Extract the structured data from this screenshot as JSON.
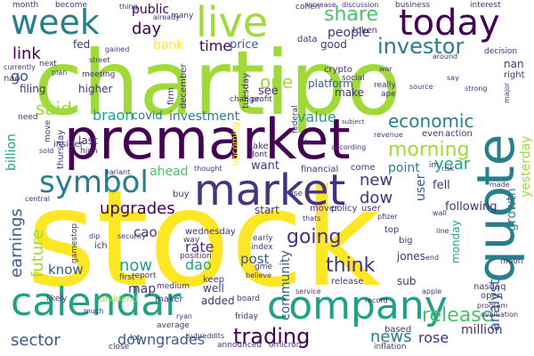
{
  "palette": {
    "yellow": "#fde725",
    "lime": "#a0da39",
    "green": "#4ac16d",
    "teal": "#1fa187",
    "cyan": "#277f8e",
    "blue": "#365c8d",
    "indigo": "#46327e",
    "purple": "#440154"
  },
  "words": [
    {
      "text": "stock",
      "color": "yellow",
      "orient": "h"
    },
    {
      "text": "chartipo",
      "color": "lime",
      "orient": "h"
    },
    {
      "text": "premarket",
      "color": "purple",
      "orient": "h"
    },
    {
      "text": "calendar",
      "color": "teal",
      "orient": "h"
    },
    {
      "text": "company",
      "color": "teal",
      "orient": "h"
    },
    {
      "text": "quote",
      "color": "cyan",
      "orient": "v"
    },
    {
      "text": "market",
      "color": "indigo",
      "orient": "h"
    },
    {
      "text": "live",
      "color": "lime",
      "orient": "h"
    },
    {
      "text": "today",
      "color": "purple",
      "orient": "h"
    },
    {
      "text": "week",
      "color": "cyan",
      "orient": "h"
    },
    {
      "text": "symbol",
      "color": "cyan",
      "orient": "h"
    },
    {
      "text": "share",
      "color": "green",
      "orient": "h"
    },
    {
      "text": "investor",
      "color": "cyan",
      "orient": "h"
    },
    {
      "text": "economic",
      "color": "cyan",
      "orient": "h"
    },
    {
      "text": "morning",
      "color": "lime",
      "orient": "h"
    },
    {
      "text": "trading",
      "color": "purple",
      "orient": "h"
    },
    {
      "text": "release",
      "color": "green",
      "orient": "h"
    },
    {
      "text": "news",
      "color": "cyan",
      "orient": "h"
    },
    {
      "text": "going",
      "color": "indigo",
      "orient": "h"
    },
    {
      "text": "think",
      "color": "indigo",
      "orient": "h"
    },
    {
      "text": "sector",
      "color": "blue",
      "orient": "h"
    },
    {
      "text": "downgrades",
      "color": "blue",
      "orient": "h"
    },
    {
      "text": "earnings",
      "color": "blue",
      "orient": "v"
    },
    {
      "text": "future",
      "color": "lime",
      "orient": "v"
    },
    {
      "text": "upgrades",
      "color": "purple",
      "orient": "h"
    },
    {
      "text": "said",
      "color": "lime",
      "orient": "h"
    },
    {
      "text": "link",
      "color": "purple",
      "orient": "h"
    },
    {
      "text": "day",
      "color": "purple",
      "orient": "h"
    },
    {
      "text": "time",
      "color": "purple",
      "orient": "h"
    },
    {
      "text": "price",
      "color": "blue",
      "orient": "h"
    },
    {
      "text": "public",
      "color": "purple",
      "orient": "h"
    },
    {
      "text": "bank",
      "color": "yellow",
      "orient": "h"
    },
    {
      "text": "people",
      "color": "indigo",
      "orient": "h"
    },
    {
      "text": "one",
      "color": "lime",
      "orient": "h"
    },
    {
      "text": "dow",
      "color": "indigo",
      "orient": "h"
    },
    {
      "text": "new",
      "color": "indigo",
      "orient": "h"
    },
    {
      "text": "year",
      "color": "teal",
      "orient": "h"
    },
    {
      "text": "point",
      "color": "cyan",
      "orient": "h"
    },
    {
      "text": "fell",
      "color": "indigo",
      "orient": "h"
    },
    {
      "text": "rose",
      "color": "indigo",
      "orient": "h"
    },
    {
      "text": "analyst",
      "color": "blue",
      "orient": "v"
    },
    {
      "text": "growth",
      "color": "cyan",
      "orient": "v"
    },
    {
      "text": "yesterday",
      "color": "lime",
      "orient": "v"
    },
    {
      "text": "following",
      "color": "indigo",
      "orient": "h"
    },
    {
      "text": "community",
      "color": "blue",
      "orient": "v"
    },
    {
      "text": "post",
      "color": "blue",
      "orient": "h"
    },
    {
      "text": "dao",
      "color": "teal",
      "orient": "h"
    },
    {
      "text": "rate",
      "color": "indigo",
      "orient": "h"
    },
    {
      "text": "cao",
      "color": "indigo",
      "orient": "h"
    },
    {
      "text": "now",
      "color": "teal",
      "orient": "h"
    },
    {
      "text": "know",
      "color": "blue",
      "orient": "h"
    },
    {
      "text": "map",
      "color": "indigo",
      "orient": "h"
    },
    {
      "text": "ahead",
      "color": "green",
      "orient": "h"
    },
    {
      "text": "braon",
      "color": "teal",
      "orient": "h"
    },
    {
      "text": "covid",
      "color": "cyan",
      "orient": "h"
    },
    {
      "text": "investment",
      "color": "cyan",
      "orient": "h"
    },
    {
      "text": "value",
      "color": "teal",
      "orient": "h"
    },
    {
      "text": "billion",
      "color": "teal",
      "orient": "v"
    },
    {
      "text": "monday",
      "color": "teal",
      "orient": "v"
    },
    {
      "text": "million",
      "color": "indigo",
      "orient": "h"
    },
    {
      "text": "nan",
      "color": "indigo",
      "orient": "h"
    },
    {
      "text": "nasdaq",
      "color": "indigo",
      "orient": "h"
    },
    {
      "text": "user",
      "color": "blue",
      "orient": "v"
    },
    {
      "text": "fed",
      "color": "indigo",
      "orient": "h"
    },
    {
      "text": "go",
      "color": "blue",
      "orient": "h"
    },
    {
      "text": "higher",
      "color": "indigo",
      "orient": "h"
    },
    {
      "text": "filing",
      "color": "indigo",
      "orient": "h"
    },
    {
      "text": "want",
      "color": "indigo",
      "orient": "h"
    },
    {
      "text": "see",
      "color": "indigo",
      "orient": "h"
    },
    {
      "text": "make",
      "color": "indigo",
      "orient": "h"
    },
    {
      "text": "good",
      "color": "indigo",
      "orient": "h"
    },
    {
      "text": "platform",
      "color": "blue",
      "orient": "h"
    },
    {
      "text": "jones",
      "color": "indigo",
      "orient": "h"
    },
    {
      "text": "sub",
      "color": "indigo",
      "orient": "h"
    },
    {
      "text": "keep",
      "color": "indigo",
      "orient": "h"
    },
    {
      "text": "well",
      "color": "indigo",
      "orient": "h"
    },
    {
      "text": "added",
      "color": "indigo",
      "orient": "h"
    },
    {
      "text": "start",
      "color": "indigo",
      "orient": "h"
    },
    {
      "text": "last",
      "color": "indigo",
      "orient": "h"
    },
    {
      "text": "mover",
      "color": "indigo",
      "orient": "h"
    },
    {
      "text": "policy",
      "color": "indigo",
      "orient": "h"
    },
    {
      "text": "user",
      "color": "indigo",
      "orient": "h"
    },
    {
      "text": "based",
      "color": "indigo",
      "orient": "h"
    },
    {
      "text": "business",
      "color": "indigo",
      "orient": "h"
    },
    {
      "text": "interest",
      "color": "indigo",
      "orient": "h"
    },
    {
      "text": "crypto",
      "color": "indigo",
      "orient": "h"
    },
    {
      "text": "token",
      "color": "indigo",
      "orient": "h"
    },
    {
      "text": "data",
      "color": "indigo",
      "orient": "h"
    },
    {
      "text": "cohen",
      "color": "indigo",
      "orient": "h"
    },
    {
      "text": "many",
      "color": "indigo",
      "orient": "h"
    },
    {
      "text": "release",
      "color": "indigo",
      "orient": "h"
    },
    {
      "text": "top",
      "color": "indigo",
      "orient": "h"
    },
    {
      "text": "big",
      "color": "indigo",
      "orient": "h"
    },
    {
      "text": "open",
      "color": "indigo",
      "orient": "h"
    },
    {
      "text": "even",
      "color": "indigo",
      "orient": "h"
    },
    {
      "text": "action",
      "color": "indigo",
      "orient": "h"
    },
    {
      "text": "come",
      "color": "indigo",
      "orient": "h"
    },
    {
      "text": "financial",
      "color": "indigo",
      "orient": "h"
    },
    {
      "text": "social",
      "color": "indigo",
      "orient": "h"
    },
    {
      "text": "firm",
      "color": "indigo",
      "orient": "v"
    },
    {
      "text": "december",
      "color": "indigo",
      "orient": "v"
    },
    {
      "text": "tuesday",
      "color": "indigo",
      "orient": "v"
    },
    {
      "text": "thursday",
      "color": "indigo",
      "orient": "v"
    },
    {
      "text": "move",
      "color": "indigo",
      "orient": "v"
    },
    {
      "text": "upcoming",
      "color": "yellow",
      "orient": "v"
    },
    {
      "text": "wednesday",
      "color": "indigo",
      "orient": "h"
    },
    {
      "text": "position",
      "color": "indigo",
      "orient": "h"
    },
    {
      "text": "report",
      "color": "indigo",
      "orient": "h"
    },
    {
      "text": "medium",
      "color": "indigo",
      "orient": "h"
    },
    {
      "text": "first",
      "color": "indigo",
      "orient": "h"
    },
    {
      "text": "dividend",
      "color": "lime",
      "orient": "h"
    },
    {
      "text": "maker",
      "color": "indigo",
      "orient": "h"
    },
    {
      "text": "board",
      "color": "indigo",
      "orient": "h"
    },
    {
      "text": "friday",
      "color": "indigo",
      "orient": "h"
    },
    {
      "text": "announced",
      "color": "indigo",
      "orient": "h"
    },
    {
      "text": "omicron",
      "color": "indigo",
      "orient": "h"
    },
    {
      "text": "inflation",
      "color": "indigo",
      "orient": "h"
    },
    {
      "text": "close",
      "color": "indigo",
      "orient": "h"
    },
    {
      "text": "lot",
      "color": "indigo",
      "orient": "h"
    },
    {
      "text": "insider",
      "color": "indigo",
      "orient": "h"
    },
    {
      "text": "buy",
      "color": "indigo",
      "orient": "h"
    },
    {
      "text": "need",
      "color": "indigo",
      "orient": "h"
    },
    {
      "text": "meeting",
      "color": "indigo",
      "orient": "h"
    },
    {
      "text": "next",
      "color": "indigo",
      "orient": "h"
    },
    {
      "text": "month",
      "color": "indigo",
      "orient": "h"
    },
    {
      "text": "become",
      "color": "indigo",
      "orient": "h"
    },
    {
      "text": "take",
      "color": "indigo",
      "orient": "h"
    },
    {
      "text": "dont",
      "color": "indigo",
      "orient": "h"
    },
    {
      "text": "gme",
      "color": "indigo",
      "orient": "h"
    },
    {
      "text": "index",
      "color": "indigo",
      "orient": "h"
    },
    {
      "text": "early",
      "color": "indigo",
      "orient": "h"
    },
    {
      "text": "nao",
      "color": "indigo",
      "orient": "h"
    },
    {
      "text": "ich",
      "color": "indigo",
      "orient": "h"
    },
    {
      "text": "likely",
      "color": "indigo",
      "orient": "h"
    },
    {
      "text": "right",
      "color": "indigo",
      "orient": "h"
    },
    {
      "text": "decision",
      "color": "indigo",
      "orient": "h"
    },
    {
      "text": "really",
      "color": "indigo",
      "orient": "h"
    },
    {
      "text": "ape",
      "color": "indigo",
      "orient": "h"
    },
    {
      "text": "federal",
      "color": "indigo",
      "orient": "v"
    },
    {
      "text": "gamestop",
      "color": "indigo",
      "orient": "v"
    },
    {
      "text": "profit",
      "color": "indigo",
      "orient": "h"
    },
    {
      "text": "change",
      "color": "indigo",
      "orient": "h"
    },
    {
      "text": "plan",
      "color": "indigo",
      "orient": "h"
    },
    {
      "text": "currently",
      "color": "indigo",
      "orient": "h"
    },
    {
      "text": "thing",
      "color": "indigo",
      "orient": "h"
    },
    {
      "text": "subreddits",
      "color": "indigo",
      "orient": "h"
    },
    {
      "text": "average",
      "color": "indigo",
      "orient": "h"
    },
    {
      "text": "ryan",
      "color": "indigo",
      "orient": "h"
    },
    {
      "text": "much",
      "color": "indigo",
      "orient": "h"
    },
    {
      "text": "service",
      "color": "indigo",
      "orient": "h"
    },
    {
      "text": "apple",
      "color": "indigo",
      "orient": "h"
    },
    {
      "text": "moon",
      "color": "indigo",
      "orient": "h"
    },
    {
      "text": "end",
      "color": "indigo",
      "orient": "h"
    },
    {
      "text": "line",
      "color": "indigo",
      "orient": "h"
    },
    {
      "text": "wall",
      "color": "indigo",
      "orient": "h"
    },
    {
      "text": "pfizer",
      "color": "indigo",
      "orient": "h"
    },
    {
      "text": "increase",
      "color": "indigo",
      "orient": "h"
    },
    {
      "text": "discussion",
      "color": "indigo",
      "orient": "h"
    },
    {
      "text": "around",
      "color": "indigo",
      "orient": "h"
    },
    {
      "text": "thought",
      "color": "indigo",
      "orient": "h"
    },
    {
      "text": "according",
      "color": "indigo",
      "orient": "h"
    },
    {
      "text": "revenue",
      "color": "indigo",
      "orient": "h"
    },
    {
      "text": "security",
      "color": "indigo",
      "orient": "h"
    },
    {
      "text": "variant",
      "color": "indigo",
      "orient": "h"
    },
    {
      "text": "already",
      "color": "indigo",
      "orient": "h"
    },
    {
      "text": "war",
      "color": "indigo",
      "orient": "h"
    },
    {
      "text": "source",
      "color": "indigo",
      "orient": "h"
    },
    {
      "text": "strong",
      "color": "indigo",
      "orient": "h"
    },
    {
      "text": "say",
      "color": "indigo",
      "orient": "h"
    },
    {
      "text": "program",
      "color": "indigo",
      "orient": "h"
    },
    {
      "text": "evaluation",
      "color": "indigo",
      "orient": "h"
    },
    {
      "text": "street",
      "color": "indigo",
      "orient": "h"
    },
    {
      "text": "gained",
      "color": "indigo",
      "orient": "h"
    },
    {
      "text": "believe",
      "color": "indigo",
      "orient": "h"
    },
    {
      "text": "record",
      "color": "indigo",
      "orient": "h"
    },
    {
      "text": "dip",
      "color": "indigo",
      "orient": "h"
    },
    {
      "text": "im",
      "color": "indigo",
      "orient": "h"
    },
    {
      "text": "risk",
      "color": "indigo",
      "orient": "h"
    },
    {
      "text": "da",
      "color": "indigo",
      "orient": "h"
    },
    {
      "text": "subject",
      "color": "indigo",
      "orient": "h"
    },
    {
      "text": "major",
      "color": "indigo",
      "orient": "v"
    },
    {
      "text": "thats",
      "color": "indigo",
      "orient": "h"
    },
    {
      "text": "central",
      "color": "indigo",
      "orient": "h"
    },
    {
      "text": "sold",
      "color": "indigo",
      "orient": "h"
    },
    {
      "text": "high",
      "color": "indigo",
      "orient": "h"
    },
    {
      "text": "made",
      "color": "indigo",
      "orient": "h"
    },
    {
      "text": "use",
      "color": "indigo",
      "orient": "h"
    },
    {
      "text": "way",
      "color": "indigo",
      "orient": "h"
    }
  ]
}
